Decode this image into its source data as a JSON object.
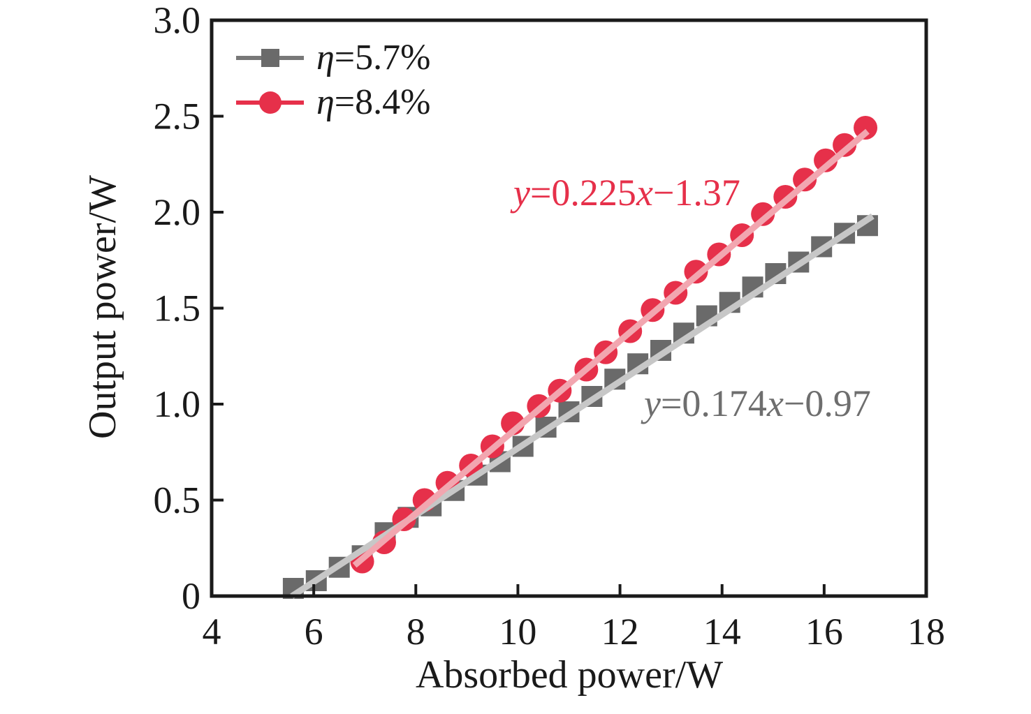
{
  "axes": {
    "x": {
      "label": "Absorbed power/W",
      "tick_labels": [
        "4",
        "6",
        "8",
        "10",
        "12",
        "14",
        "16",
        "18"
      ],
      "tick_values": [
        4,
        6,
        8,
        10,
        12,
        14,
        16,
        18
      ]
    },
    "y": {
      "label": "Output power/W",
      "tick_labels": [
        "0",
        "0.5",
        "1.0",
        "1.5",
        "2.0",
        "2.5",
        "3.0"
      ],
      "tick_values": [
        0,
        0.5,
        1,
        1.5,
        2,
        2.5,
        3
      ]
    }
  },
  "legend": {
    "items": [
      {
        "label_eta": "η",
        "label_rest": "=5.7%",
        "marker": "square",
        "marker_color": "#6a6a6a",
        "line_color": "#787878"
      },
      {
        "label_eta": "η",
        "label_rest": "=8.4%",
        "marker": "circle",
        "marker_color": "#e6304a",
        "line_color": "#e6304a"
      }
    ]
  },
  "annotations": {
    "red": {
      "y": "y",
      "mid": "=0.225",
      "x": "x",
      "tail": "−1.37",
      "color": "#e6304a"
    },
    "gray": {
      "y": "y",
      "mid": "=0.174",
      "x": "x",
      "tail": "−0.97",
      "color": "#6e6e6e"
    }
  },
  "colors": {
    "axis": "#1a1a1a",
    "gray_marker": "#6a6a6a",
    "red_marker": "#e6304a",
    "gray_fit_line": "#c7c7c7",
    "pink_fit_line": "#f2a6b0"
  },
  "chart_data": {
    "type": "scatter",
    "title": "",
    "xlabel": "Absorbed power/W",
    "ylabel": "Output power/W",
    "xlim": [
      4,
      18
    ],
    "ylim": [
      0,
      3
    ],
    "grid": false,
    "legend_position": "upper-left",
    "series": [
      {
        "name": "η=5.7%",
        "marker": "square",
        "color": "#6a6a6a",
        "points": [
          [
            5.6,
            0.04
          ],
          [
            6.05,
            0.08
          ],
          [
            6.5,
            0.15
          ],
          [
            6.95,
            0.21
          ],
          [
            7.4,
            0.33
          ],
          [
            7.85,
            0.41
          ],
          [
            8.3,
            0.47
          ],
          [
            8.75,
            0.55
          ],
          [
            9.2,
            0.63
          ],
          [
            9.65,
            0.7
          ],
          [
            10.1,
            0.78
          ],
          [
            10.55,
            0.88
          ],
          [
            11.0,
            0.96
          ],
          [
            11.45,
            1.04
          ],
          [
            11.9,
            1.13
          ],
          [
            12.35,
            1.21
          ],
          [
            12.8,
            1.28
          ],
          [
            13.25,
            1.37
          ],
          [
            13.7,
            1.46
          ],
          [
            14.15,
            1.53
          ],
          [
            14.6,
            1.61
          ],
          [
            15.05,
            1.68
          ],
          [
            15.5,
            1.74
          ],
          [
            15.95,
            1.82
          ],
          [
            16.4,
            1.89
          ],
          [
            16.85,
            1.93
          ]
        ],
        "fit": {
          "slope": 0.174,
          "intercept": -0.97,
          "label": "y=0.174x−0.97",
          "line_color": "#c7c7c7",
          "x_range": [
            5.57,
            16.95
          ]
        }
      },
      {
        "name": "η=8.4%",
        "marker": "circle",
        "color": "#e6304a",
        "points": [
          [
            6.95,
            0.18
          ],
          [
            7.38,
            0.28
          ],
          [
            7.77,
            0.4
          ],
          [
            8.17,
            0.5
          ],
          [
            8.62,
            0.59
          ],
          [
            9.08,
            0.68
          ],
          [
            9.5,
            0.78
          ],
          [
            9.9,
            0.9
          ],
          [
            10.41,
            0.99
          ],
          [
            10.82,
            1.07
          ],
          [
            11.34,
            1.18
          ],
          [
            11.72,
            1.27
          ],
          [
            12.2,
            1.38
          ],
          [
            12.64,
            1.49
          ],
          [
            13.09,
            1.58
          ],
          [
            13.49,
            1.69
          ],
          [
            13.94,
            1.78
          ],
          [
            14.39,
            1.88
          ],
          [
            14.8,
            1.99
          ],
          [
            15.24,
            2.08
          ],
          [
            15.62,
            2.17
          ],
          [
            16.03,
            2.27
          ],
          [
            16.4,
            2.35
          ],
          [
            16.81,
            2.44
          ]
        ],
        "fit": {
          "slope": 0.225,
          "intercept": -1.37,
          "label": "y=0.225x−1.37",
          "line_color": "#f2a6b0",
          "x_range": [
            6.8,
            16.85
          ]
        }
      }
    ]
  }
}
